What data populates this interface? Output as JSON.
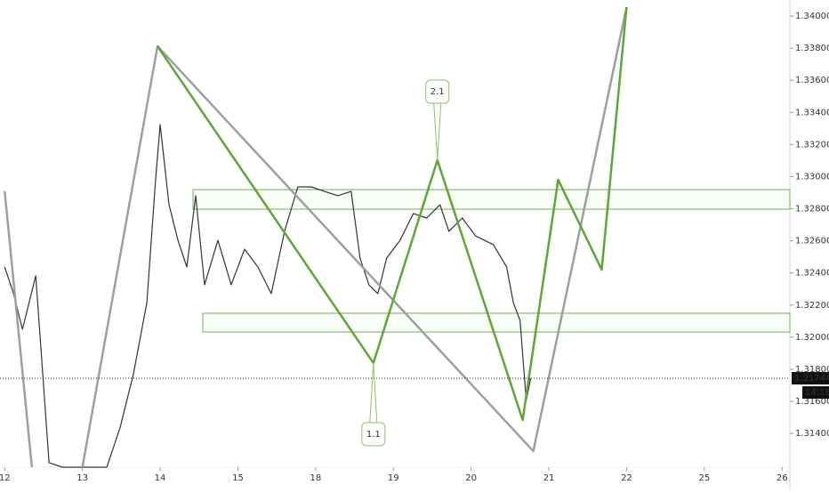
{
  "chart_data": {
    "type": "line",
    "xlim": [
      -0.06,
      10.1
    ],
    "ylim": [
      1.3119,
      1.341
    ],
    "xticks": [
      {
        "value": 0,
        "label": "12"
      },
      {
        "value": 1,
        "label": "13"
      },
      {
        "value": 2,
        "label": "14"
      },
      {
        "value": 3,
        "label": "15"
      },
      {
        "value": 4,
        "label": "18"
      },
      {
        "value": 5,
        "label": "19"
      },
      {
        "value": 6,
        "label": "20"
      },
      {
        "value": 7,
        "label": "21"
      },
      {
        "value": 8,
        "label": "22"
      },
      {
        "value": 9,
        "label": "25"
      },
      {
        "value": 10,
        "label": "26"
      }
    ],
    "yticks": [
      {
        "value": 1.314,
        "label": "1.31400"
      },
      {
        "value": 1.316,
        "label": "1.31600"
      },
      {
        "value": 1.318,
        "label": "1.31800"
      },
      {
        "value": 1.32,
        "label": "1.32000"
      },
      {
        "value": 1.322,
        "label": "1.32200"
      },
      {
        "value": 1.324,
        "label": "1.32400"
      },
      {
        "value": 1.326,
        "label": "1.32600"
      },
      {
        "value": 1.328,
        "label": "1.32800"
      },
      {
        "value": 1.33,
        "label": "1.33000"
      },
      {
        "value": 1.332,
        "label": "1.33200"
      },
      {
        "value": 1.334,
        "label": "1.33400"
      },
      {
        "value": 1.336,
        "label": "1.33600"
      },
      {
        "value": 1.338,
        "label": "1.33800"
      },
      {
        "value": 1.34,
        "label": "1.34000"
      }
    ],
    "series": [
      {
        "color": "#333333",
        "width": 1.2,
        "x": [
          0,
          0.114,
          0.229,
          0.4,
          0.571,
          0.743,
          0.914,
          1.086,
          1.314,
          1.486,
          1.657,
          1.829,
          1.943,
          2.0,
          2.114,
          2.229,
          2.343,
          2.457,
          2.571,
          2.743,
          2.914,
          3.086,
          3.257,
          3.429,
          3.6,
          3.771,
          3.943,
          4.114,
          4.286,
          4.457,
          4.571,
          4.686,
          4.8,
          4.914,
          5.086,
          5.257,
          5.429,
          5.6,
          5.714,
          5.886,
          6.057,
          6.286,
          6.457,
          6.543,
          6.629,
          6.709,
          6.766
        ],
        "values": [
          1.32437,
          1.32271,
          1.32049,
          1.32382,
          1.31218,
          1.3119,
          1.3119,
          1.3119,
          1.3119,
          1.31439,
          1.31772,
          1.32215,
          1.32991,
          1.33324,
          1.32825,
          1.32603,
          1.32437,
          1.32881,
          1.32326,
          1.32603,
          1.32326,
          1.32548,
          1.32437,
          1.32271,
          1.32659,
          1.32936,
          1.32936,
          1.32908,
          1.32881,
          1.32908,
          1.32493,
          1.32326,
          1.32271,
          1.32493,
          1.32603,
          1.3277,
          1.32742,
          1.32825,
          1.32659,
          1.32742,
          1.32631,
          1.32576,
          1.32437,
          1.32215,
          1.32105,
          1.31606,
          1.31744
        ]
      },
      {
        "color": "#9e9e9e",
        "width": 2.5,
        "x": [
          0,
          0.35,
          null,
          1.0,
          1.966,
          6.8,
          8.0
        ],
        "values": [
          1.3291,
          1.3119,
          null,
          1.3119,
          1.33812,
          1.3129,
          1.34056
        ]
      },
      {
        "color": "#5ea63a",
        "width": 2.5,
        "x": [
          1.966,
          4.743,
          5.566,
          6.663,
          7.12,
          7.68,
          8.0
        ],
        "values": [
          1.33812,
          1.31839,
          1.33102,
          1.31484,
          1.3298,
          1.3242,
          1.34056
        ]
      }
    ],
    "zones": [
      {
        "x0": 2.423,
        "y0": 1.32797,
        "y1": 1.32919
      },
      {
        "x0": 2.549,
        "y0": 1.32032,
        "y1": 1.32149
      }
    ],
    "annotations": [
      {
        "text": "1.1",
        "x": 4.743,
        "y": 1.31839,
        "side": "below"
      },
      {
        "text": "2.1",
        "x": 5.566,
        "y": 1.33102,
        "side": "above"
      }
    ],
    "last_price": {
      "value": 1.31744,
      "label": "1.31744"
    },
    "countdown": "14:16"
  }
}
